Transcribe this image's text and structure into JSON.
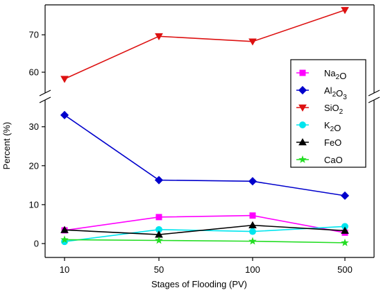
{
  "chart_data": {
    "type": "line",
    "xlabel": "Stages of Flooding (PV)",
    "ylabel": "Percent (%)",
    "categories": [
      "10",
      "50",
      "100",
      "500"
    ],
    "y_break": {
      "lower_range": [
        0,
        36
      ],
      "upper_range": [
        55,
        78
      ]
    },
    "y_ticks_lower": [
      0,
      10,
      20,
      30
    ],
    "y_ticks_upper": [
      60,
      70
    ],
    "legend_position": "right",
    "series": [
      {
        "name": "Na2O",
        "label_main": "Na",
        "label_sub": "2",
        "label_tail": "O",
        "sub2": "",
        "tail2": "",
        "color": "#ff00ff",
        "marker": "square",
        "values": [
          3.4,
          6.8,
          7.2,
          2.8
        ]
      },
      {
        "name": "Al2O3",
        "label_main": "Al",
        "label_sub": "2",
        "label_tail": "O",
        "sub2": "3",
        "tail2": "",
        "color": "#0000cc",
        "marker": "diamond",
        "values": [
          33.0,
          16.3,
          16.0,
          12.3
        ]
      },
      {
        "name": "SiO2",
        "label_main": "SiO",
        "label_sub": "2",
        "label_tail": "",
        "sub2": "",
        "tail2": "",
        "color": "#dd1111",
        "marker": "triangle-down",
        "values": [
          58.2,
          69.6,
          68.2,
          76.6
        ]
      },
      {
        "name": "K2O",
        "label_main": "K",
        "label_sub": "2",
        "label_tail": "O",
        "sub2": "",
        "tail2": "",
        "color": "#00e5ee",
        "marker": "circle",
        "values": [
          0.5,
          3.6,
          3.1,
          4.4
        ]
      },
      {
        "name": "FeO",
        "label_main": "FeO",
        "label_sub": "",
        "label_tail": "",
        "sub2": "",
        "tail2": "",
        "color": "#000000",
        "marker": "triangle-up",
        "values": [
          3.5,
          2.3,
          4.7,
          3.3
        ]
      },
      {
        "name": "CaO",
        "label_main": "CaO",
        "label_sub": "",
        "label_tail": "",
        "sub2": "",
        "tail2": "",
        "color": "#22dd22",
        "marker": "star",
        "values": [
          1.0,
          0.8,
          0.6,
          0.2
        ]
      }
    ]
  }
}
